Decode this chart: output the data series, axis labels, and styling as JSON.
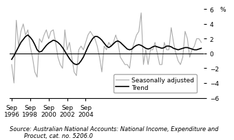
{
  "title": "",
  "ylabel": "%",
  "ylim": [
    -6,
    6
  ],
  "yticks": [
    -6,
    -4,
    -2,
    0,
    2,
    4,
    6
  ],
  "source_line1": "Source: Australian National Accounts: National Income, Expenditure and",
  "source_line2": "        Procuct, cat. no. 5206.0",
  "trend": [
    -0.8,
    -0.3,
    0.3,
    0.9,
    1.5,
    1.9,
    2.3,
    2.5,
    2.2,
    1.8,
    1.2,
    0.5,
    0.2,
    0.3,
    0.7,
    1.1,
    1.4,
    1.6,
    1.8,
    1.7,
    1.5,
    1.2,
    0.8,
    0.3,
    -0.2,
    -0.7,
    -1.1,
    -1.4,
    -1.5,
    -1.4,
    -1.0,
    -0.5,
    0.2,
    0.9,
    1.5,
    2.0,
    2.3,
    2.3,
    2.1,
    1.8,
    1.4,
    1.0,
    0.8,
    1.0,
    1.3,
    1.6,
    1.7,
    1.5,
    1.2,
    0.9,
    0.6,
    0.5,
    0.6,
    0.9,
    1.1,
    1.2,
    1.1,
    0.9,
    0.7,
    0.6,
    0.7,
    0.9,
    1.0,
    0.9,
    0.8,
    0.7,
    0.8,
    1.0,
    1.0,
    0.9,
    0.7,
    0.6,
    0.5,
    0.6,
    0.7,
    0.8,
    0.8,
    0.7,
    0.6,
    0.5,
    0.5,
    0.6,
    0.7
  ],
  "seas_adj": [
    -1.5,
    -4.0,
    4.5,
    1.0,
    3.0,
    4.0,
    2.5,
    3.2,
    1.0,
    -0.5,
    -2.5,
    -3.2,
    2.0,
    1.5,
    2.5,
    3.2,
    2.0,
    3.0,
    3.2,
    1.5,
    -0.5,
    -1.5,
    -2.0,
    3.2,
    0.5,
    1.5,
    -0.5,
    -2.5,
    -3.0,
    0.5,
    1.0,
    0.5,
    1.5,
    2.5,
    3.0,
    2.5,
    2.0,
    1.0,
    -0.5,
    -2.5,
    1.0,
    0.5,
    1.5,
    1.0,
    1.5,
    2.5,
    1.5,
    -0.5,
    -1.0,
    -1.5,
    -1.5,
    -2.0,
    0.5,
    1.5,
    2.5,
    3.0,
    5.5,
    -1.5,
    0.5,
    -1.5,
    0.5,
    0.5,
    1.5,
    0.0,
    -1.5,
    -1.5,
    1.5,
    0.5,
    0.5,
    3.5,
    1.5,
    0.0,
    -1.0,
    -1.5,
    -0.5,
    3.0,
    2.0,
    -0.5,
    0.5,
    1.0,
    2.0,
    2.0,
    1.5
  ],
  "trend_color": "#000000",
  "seas_color": "#aaaaaa",
  "background_color": "#ffffff",
  "tick_fontsize": 6.5,
  "legend_fontsize": 6.5,
  "source_fontsize": 6.0,
  "xtick_labels": [
    "Sep\n1996",
    "Sep\n1998",
    "Sep\n2000",
    "Sep\n2002",
    "Sep\n2004"
  ],
  "xtick_positions": [
    0,
    8,
    16,
    24,
    32
  ]
}
